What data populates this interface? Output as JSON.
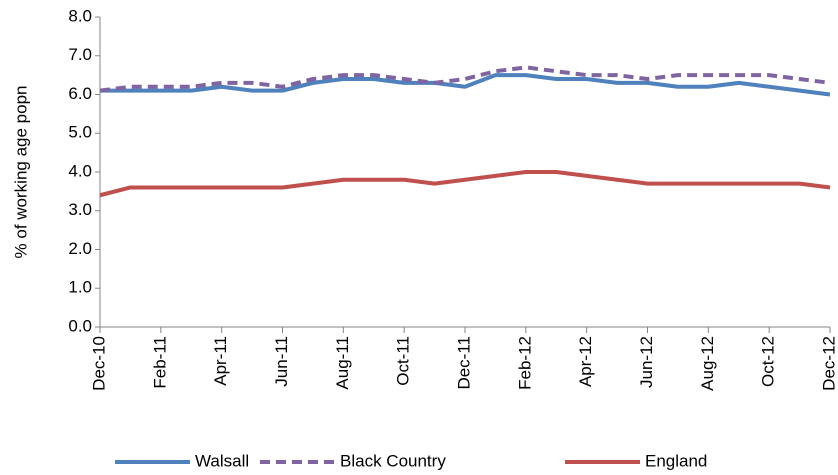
{
  "chart_data": {
    "type": "line",
    "y_label": "% of working age popn",
    "categories": [
      "Dec-10",
      null,
      "Feb-11",
      null,
      "Apr-11",
      null,
      "Jun-11",
      null,
      "Aug-11",
      null,
      "Oct-11",
      null,
      "Dec-11",
      null,
      "Feb-12",
      null,
      "Apr-12",
      null,
      "Jun-12",
      null,
      "Aug-12",
      null,
      "Oct-12",
      null,
      "Dec-12"
    ],
    "series": [
      {
        "name": "Walsall",
        "color": "#4f81bd",
        "dashed": false,
        "values": [
          6.1,
          6.1,
          6.1,
          6.1,
          6.2,
          6.1,
          6.1,
          6.3,
          6.4,
          6.4,
          6.3,
          6.3,
          6.2,
          6.5,
          6.5,
          6.4,
          6.4,
          6.3,
          6.3,
          6.2,
          6.2,
          6.3,
          6.2,
          6.1,
          6.0
        ]
      },
      {
        "name": "Black Country",
        "color": "#8064a2",
        "dashed": true,
        "values": [
          6.1,
          6.2,
          6.2,
          6.2,
          6.3,
          6.3,
          6.2,
          6.4,
          6.5,
          6.5,
          6.4,
          6.3,
          6.4,
          6.6,
          6.7,
          6.6,
          6.5,
          6.5,
          6.4,
          6.5,
          6.5,
          6.5,
          6.5,
          6.4,
          6.3
        ]
      },
      {
        "name": "England",
        "color": "#c0504d",
        "dashed": false,
        "values": [
          3.4,
          3.6,
          3.6,
          3.6,
          3.6,
          3.6,
          3.6,
          3.7,
          3.8,
          3.8,
          3.8,
          3.7,
          3.8,
          3.9,
          4.0,
          4.0,
          3.9,
          3.8,
          3.7,
          3.7,
          3.7,
          3.7,
          3.7,
          3.7,
          3.6
        ]
      }
    ],
    "ylim": [
      0,
      8
    ],
    "yticks": [
      {
        "value": 0,
        "label": "0.0"
      },
      {
        "value": 1,
        "label": "1.0"
      },
      {
        "value": 2,
        "label": "2.0"
      },
      {
        "value": 3,
        "label": "3.0"
      },
      {
        "value": 4,
        "label": "4.0"
      },
      {
        "value": 5,
        "label": "5.0"
      },
      {
        "value": 6,
        "label": "6.0"
      },
      {
        "value": 7,
        "label": "7.0"
      },
      {
        "value": 8,
        "label": "8.0"
      }
    ],
    "grid": false,
    "legend": "bottom"
  }
}
